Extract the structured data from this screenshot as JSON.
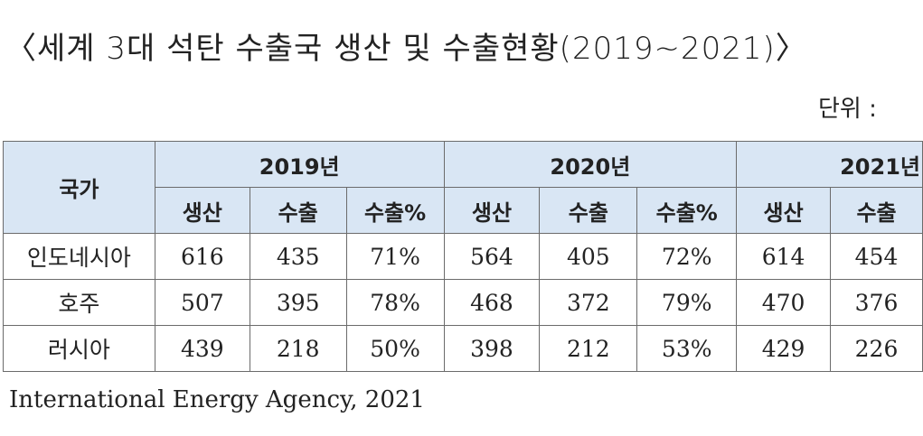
{
  "title": "〈세계 3대 석탄 수출국 생산 및 수출현황(2019~2021)〉",
  "unit_label": "단위 :",
  "table": {
    "country_header": "국가",
    "years": [
      "2019년",
      "2020년",
      "2021년"
    ],
    "subheaders": {
      "production": "생산",
      "export": "수출",
      "export_pct": "수출%"
    },
    "rows": [
      {
        "country": "인도네시아",
        "y2019": [
          "616",
          "435",
          "71%"
        ],
        "y2020": [
          "564",
          "405",
          "72%"
        ],
        "y2021": [
          "614",
          "454"
        ]
      },
      {
        "country": "호주",
        "y2019": [
          "507",
          "395",
          "78%"
        ],
        "y2020": [
          "468",
          "372",
          "79%"
        ],
        "y2021": [
          "470",
          "376"
        ]
      },
      {
        "country": "러시아",
        "y2019": [
          "439",
          "218",
          "50%"
        ],
        "y2020": [
          "398",
          "212",
          "53%"
        ],
        "y2021": [
          "429",
          "226"
        ]
      }
    ]
  },
  "source": "International Energy Agency, 2021"
}
